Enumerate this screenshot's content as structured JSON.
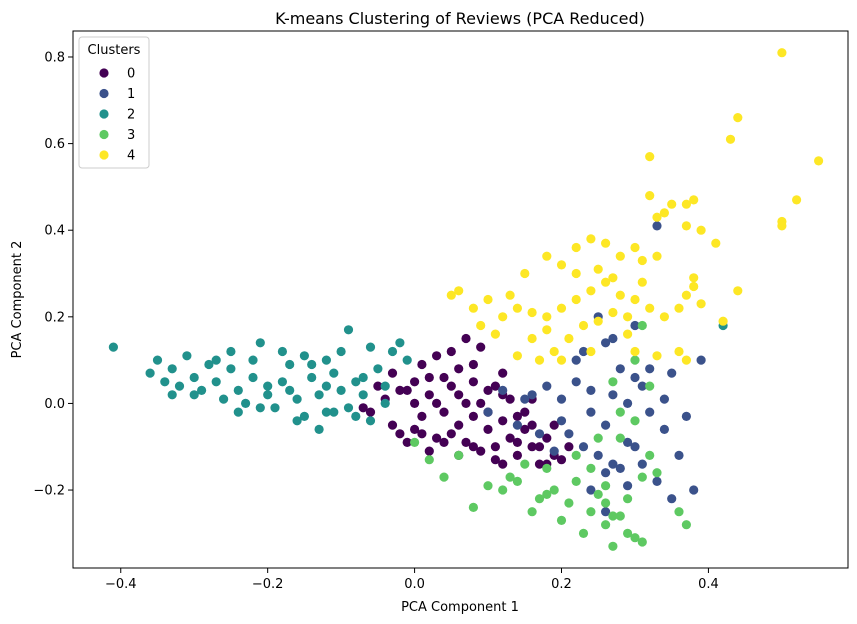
{
  "chart_data": {
    "type": "scatter",
    "title": "K-means Clustering of Reviews (PCA Reduced)",
    "xlabel": "PCA Component 1",
    "ylabel": "PCA Component 2",
    "xlim": [
      -0.465,
      0.59
    ],
    "ylim": [
      -0.38,
      0.86
    ],
    "xticks": [
      -0.4,
      -0.2,
      0.0,
      0.2,
      0.4
    ],
    "xtick_labels": [
      "−0.4",
      "−0.2",
      "0.0",
      "0.2",
      "0.4"
    ],
    "yticks": [
      -0.2,
      0.0,
      0.2,
      0.4,
      0.6,
      0.8
    ],
    "ytick_labels": [
      "−0.2",
      "0.0",
      "0.2",
      "0.4",
      "0.6",
      "0.8"
    ],
    "grid": false,
    "legend": {
      "title": "Clusters",
      "position": "upper-left"
    },
    "series": [
      {
        "name": "0",
        "color": "#440154",
        "points": [
          [
            -0.06,
            -0.02
          ],
          [
            -0.04,
            0.01
          ],
          [
            -0.03,
            -0.05
          ],
          [
            -0.02,
            0.03
          ],
          [
            0.0,
            -0.06
          ],
          [
            0.01,
            -0.03
          ],
          [
            0.02,
            0.02
          ],
          [
            0.03,
            -0.08
          ],
          [
            0.04,
            -0.02
          ],
          [
            0.05,
            0.04
          ],
          [
            0.06,
            -0.05
          ],
          [
            0.07,
            -0.09
          ],
          [
            0.08,
            -0.03
          ],
          [
            0.09,
            0.0
          ],
          [
            0.1,
            -0.06
          ],
          [
            0.11,
            -0.1
          ],
          [
            0.12,
            -0.04
          ],
          [
            0.13,
            -0.08
          ],
          [
            0.14,
            -0.12
          ],
          [
            0.15,
            -0.06
          ],
          [
            0.16,
            -0.1
          ],
          [
            0.17,
            -0.14
          ],
          [
            0.18,
            -0.08
          ],
          [
            0.19,
            -0.12
          ],
          [
            -0.01,
            -0.09
          ],
          [
            0.0,
            0.05
          ],
          [
            0.02,
            -0.11
          ],
          [
            0.04,
            0.06
          ],
          [
            0.06,
            -0.12
          ],
          [
            0.08,
            0.05
          ],
          [
            0.1,
            0.03
          ],
          [
            0.12,
            0.02
          ],
          [
            0.05,
            0.12
          ],
          [
            0.07,
            0.15
          ],
          [
            0.09,
            0.13
          ],
          [
            -0.05,
            0.04
          ],
          [
            -0.07,
            -0.01
          ],
          [
            0.15,
            -0.02
          ],
          [
            0.13,
            0.01
          ],
          [
            0.11,
            -0.13
          ],
          [
            0.09,
            -0.11
          ],
          [
            0.03,
            0.0
          ],
          [
            0.01,
            -0.07
          ],
          [
            0.0,
            0.0
          ],
          [
            0.14,
            -0.09
          ],
          [
            0.16,
            -0.05
          ],
          [
            0.12,
            -0.14
          ],
          [
            0.08,
            -0.1
          ],
          [
            0.06,
            0.02
          ],
          [
            0.04,
            -0.09
          ],
          [
            -0.02,
            -0.07
          ],
          [
            0.17,
            -0.1
          ],
          [
            0.18,
            -0.14
          ],
          [
            0.2,
            -0.13
          ],
          [
            0.11,
            0.04
          ],
          [
            0.02,
            0.06
          ],
          [
            0.1,
            -0.02
          ],
          [
            0.05,
            -0.07
          ],
          [
            0.14,
            -0.03
          ],
          [
            0.07,
            0.0
          ],
          [
            -0.03,
            0.07
          ],
          [
            0.01,
            0.09
          ],
          [
            0.06,
            0.08
          ],
          [
            0.12,
            0.07
          ],
          [
            0.16,
            0.01
          ],
          [
            0.19,
            -0.05
          ],
          [
            0.21,
            -0.1
          ],
          [
            0.08,
            0.09
          ],
          [
            0.03,
            0.11
          ],
          [
            -0.01,
            0.03
          ]
        ]
      },
      {
        "name": "1",
        "color": "#3b528b",
        "points": [
          [
            0.1,
            -0.02
          ],
          [
            0.12,
            0.03
          ],
          [
            0.15,
            0.01
          ],
          [
            0.18,
            0.04
          ],
          [
            0.2,
            -0.04
          ],
          [
            0.22,
            0.05
          ],
          [
            0.24,
            0.03
          ],
          [
            0.25,
            -0.12
          ],
          [
            0.26,
            -0.05
          ],
          [
            0.27,
            0.02
          ],
          [
            0.28,
            -0.15
          ],
          [
            0.29,
            -0.19
          ],
          [
            0.3,
            -0.1
          ],
          [
            0.31,
            0.04
          ],
          [
            0.32,
            -0.02
          ],
          [
            0.33,
            0.41
          ],
          [
            0.34,
            -0.06
          ],
          [
            0.35,
            -0.22
          ],
          [
            0.36,
            -0.12
          ],
          [
            0.37,
            -0.03
          ],
          [
            0.38,
            -0.2
          ],
          [
            0.39,
            0.1
          ],
          [
            0.28,
            0.08
          ],
          [
            0.3,
            0.18
          ],
          [
            0.25,
            0.2
          ],
          [
            0.27,
            0.15
          ],
          [
            0.22,
            0.1
          ],
          [
            0.21,
            -0.07
          ],
          [
            0.23,
            -0.1
          ],
          [
            0.26,
            -0.16
          ],
          [
            0.29,
            -0.09
          ],
          [
            0.31,
            -0.14
          ],
          [
            0.33,
            -0.18
          ],
          [
            0.34,
            0.01
          ],
          [
            0.24,
            -0.2
          ],
          [
            0.26,
            -0.25
          ],
          [
            0.27,
            -0.14
          ],
          [
            0.19,
            -0.11
          ],
          [
            0.17,
            -0.07
          ],
          [
            0.14,
            -0.05
          ],
          [
            0.16,
            0.02
          ],
          [
            0.2,
            0.01
          ],
          [
            0.3,
            0.06
          ],
          [
            0.32,
            0.08
          ],
          [
            0.35,
            0.07
          ],
          [
            0.23,
            0.12
          ],
          [
            0.26,
            0.14
          ],
          [
            0.29,
            0.0
          ],
          [
            0.24,
            -0.02
          ]
        ]
      },
      {
        "name": "2",
        "color": "#21918c",
        "points": [
          [
            -0.41,
            0.13
          ],
          [
            -0.36,
            0.07
          ],
          [
            -0.35,
            0.1
          ],
          [
            -0.34,
            0.05
          ],
          [
            -0.33,
            0.08
          ],
          [
            -0.32,
            0.04
          ],
          [
            -0.31,
            0.11
          ],
          [
            -0.3,
            0.06
          ],
          [
            -0.29,
            0.03
          ],
          [
            -0.28,
            0.09
          ],
          [
            -0.27,
            0.05
          ],
          [
            -0.26,
            0.01
          ],
          [
            -0.25,
            0.08
          ],
          [
            -0.24,
            0.03
          ],
          [
            -0.23,
            0.0
          ],
          [
            -0.22,
            0.06
          ],
          [
            -0.21,
            0.14
          ],
          [
            -0.2,
            0.02
          ],
          [
            -0.19,
            -0.01
          ],
          [
            -0.18,
            0.05
          ],
          [
            -0.17,
            0.09
          ],
          [
            -0.16,
            0.01
          ],
          [
            -0.15,
            -0.03
          ],
          [
            -0.14,
            0.06
          ],
          [
            -0.13,
            0.02
          ],
          [
            -0.12,
            -0.02
          ],
          [
            -0.11,
            0.07
          ],
          [
            -0.1,
            0.03
          ],
          [
            -0.09,
            -0.01
          ],
          [
            -0.08,
            0.05
          ],
          [
            -0.07,
            0.02
          ],
          [
            -0.06,
            -0.04
          ],
          [
            -0.05,
            0.08
          ],
          [
            -0.04,
            0.04
          ],
          [
            -0.03,
            0.12
          ],
          [
            -0.02,
            0.14
          ],
          [
            -0.01,
            0.1
          ],
          [
            -0.25,
            0.12
          ],
          [
            -0.22,
            0.1
          ],
          [
            -0.18,
            0.12
          ],
          [
            -0.15,
            0.11
          ],
          [
            -0.12,
            0.1
          ],
          [
            -0.1,
            0.12
          ],
          [
            -0.09,
            0.17
          ],
          [
            -0.16,
            -0.04
          ],
          [
            -0.13,
            -0.06
          ],
          [
            -0.11,
            -0.02
          ],
          [
            -0.2,
            0.04
          ],
          [
            -0.27,
            0.1
          ],
          [
            -0.3,
            0.02
          ],
          [
            -0.33,
            0.02
          ],
          [
            -0.24,
            -0.02
          ],
          [
            -0.21,
            -0.01
          ],
          [
            -0.14,
            0.09
          ],
          [
            -0.07,
            0.06
          ],
          [
            -0.06,
            0.13
          ],
          [
            -0.04,
            0.0
          ],
          [
            -0.17,
            0.03
          ],
          [
            -0.12,
            0.04
          ],
          [
            -0.08,
            -0.03
          ],
          [
            0.42,
            0.18
          ]
        ]
      },
      {
        "name": "3",
        "color": "#5ec962",
        "points": [
          [
            0.0,
            -0.09
          ],
          [
            0.02,
            -0.13
          ],
          [
            0.04,
            -0.17
          ],
          [
            0.06,
            -0.12
          ],
          [
            0.08,
            -0.24
          ],
          [
            0.1,
            -0.19
          ],
          [
            0.12,
            -0.2
          ],
          [
            0.14,
            -0.18
          ],
          [
            0.16,
            -0.25
          ],
          [
            0.17,
            -0.22
          ],
          [
            0.18,
            -0.15
          ],
          [
            0.19,
            -0.2
          ],
          [
            0.2,
            -0.27
          ],
          [
            0.21,
            -0.23
          ],
          [
            0.22,
            -0.18
          ],
          [
            0.23,
            -0.3
          ],
          [
            0.24,
            -0.25
          ],
          [
            0.25,
            -0.21
          ],
          [
            0.26,
            -0.28
          ],
          [
            0.27,
            -0.33
          ],
          [
            0.28,
            -0.26
          ],
          [
            0.29,
            -0.22
          ],
          [
            0.3,
            -0.31
          ],
          [
            0.31,
            -0.17
          ],
          [
            0.32,
            -0.12
          ],
          [
            0.33,
            -0.16
          ],
          [
            0.28,
            -0.08
          ],
          [
            0.3,
            -0.04
          ],
          [
            0.27,
            0.05
          ],
          [
            0.3,
            0.1
          ],
          [
            0.31,
            0.18
          ],
          [
            0.36,
            -0.25
          ],
          [
            0.37,
            -0.28
          ],
          [
            0.22,
            -0.12
          ],
          [
            0.24,
            -0.15
          ],
          [
            0.18,
            -0.21
          ],
          [
            0.15,
            -0.14
          ],
          [
            0.13,
            -0.17
          ],
          [
            0.26,
            -0.19
          ],
          [
            0.29,
            -0.3
          ],
          [
            0.31,
            -0.32
          ],
          [
            0.27,
            -0.26
          ],
          [
            0.25,
            -0.08
          ],
          [
            0.28,
            -0.02
          ],
          [
            0.32,
            0.04
          ],
          [
            0.26,
            -0.23
          ]
        ]
      },
      {
        "name": "4",
        "color": "#fde725",
        "points": [
          [
            0.5,
            0.81
          ],
          [
            0.44,
            0.66
          ],
          [
            0.43,
            0.61
          ],
          [
            0.55,
            0.56
          ],
          [
            0.32,
            0.57
          ],
          [
            0.52,
            0.47
          ],
          [
            0.5,
            0.42
          ],
          [
            0.5,
            0.41
          ],
          [
            0.32,
            0.48
          ],
          [
            0.34,
            0.44
          ],
          [
            0.35,
            0.46
          ],
          [
            0.37,
            0.46
          ],
          [
            0.38,
            0.47
          ],
          [
            0.33,
            0.43
          ],
          [
            0.37,
            0.41
          ],
          [
            0.39,
            0.4
          ],
          [
            0.3,
            0.36
          ],
          [
            0.28,
            0.34
          ],
          [
            0.31,
            0.33
          ],
          [
            0.33,
            0.34
          ],
          [
            0.26,
            0.37
          ],
          [
            0.24,
            0.38
          ],
          [
            0.22,
            0.36
          ],
          [
            0.2,
            0.32
          ],
          [
            0.18,
            0.34
          ],
          [
            0.15,
            0.3
          ],
          [
            0.13,
            0.25
          ],
          [
            0.1,
            0.24
          ],
          [
            0.08,
            0.22
          ],
          [
            0.06,
            0.26
          ],
          [
            0.05,
            0.25
          ],
          [
            0.12,
            0.2
          ],
          [
            0.14,
            0.22
          ],
          [
            0.16,
            0.21
          ],
          [
            0.18,
            0.2
          ],
          [
            0.2,
            0.22
          ],
          [
            0.22,
            0.24
          ],
          [
            0.24,
            0.26
          ],
          [
            0.26,
            0.28
          ],
          [
            0.28,
            0.25
          ],
          [
            0.3,
            0.24
          ],
          [
            0.32,
            0.22
          ],
          [
            0.34,
            0.2
          ],
          [
            0.29,
            0.2
          ],
          [
            0.27,
            0.21
          ],
          [
            0.25,
            0.19
          ],
          [
            0.23,
            0.18
          ],
          [
            0.21,
            0.15
          ],
          [
            0.19,
            0.12
          ],
          [
            0.17,
            0.1
          ],
          [
            0.38,
            0.29
          ],
          [
            0.38,
            0.27
          ],
          [
            0.37,
            0.25
          ],
          [
            0.36,
            0.22
          ],
          [
            0.39,
            0.23
          ],
          [
            0.44,
            0.26
          ],
          [
            0.41,
            0.37
          ],
          [
            0.42,
            0.19
          ],
          [
            0.36,
            0.12
          ],
          [
            0.37,
            0.1
          ],
          [
            0.3,
            0.12
          ],
          [
            0.29,
            0.16
          ],
          [
            0.33,
            0.11
          ],
          [
            0.22,
            0.3
          ],
          [
            0.25,
            0.31
          ],
          [
            0.27,
            0.29
          ],
          [
            0.31,
            0.28
          ],
          [
            0.11,
            0.16
          ],
          [
            0.09,
            0.18
          ],
          [
            0.14,
            0.11
          ],
          [
            0.16,
            0.15
          ],
          [
            0.18,
            0.17
          ],
          [
            0.2,
            0.1
          ],
          [
            0.24,
            0.12
          ]
        ]
      }
    ]
  }
}
